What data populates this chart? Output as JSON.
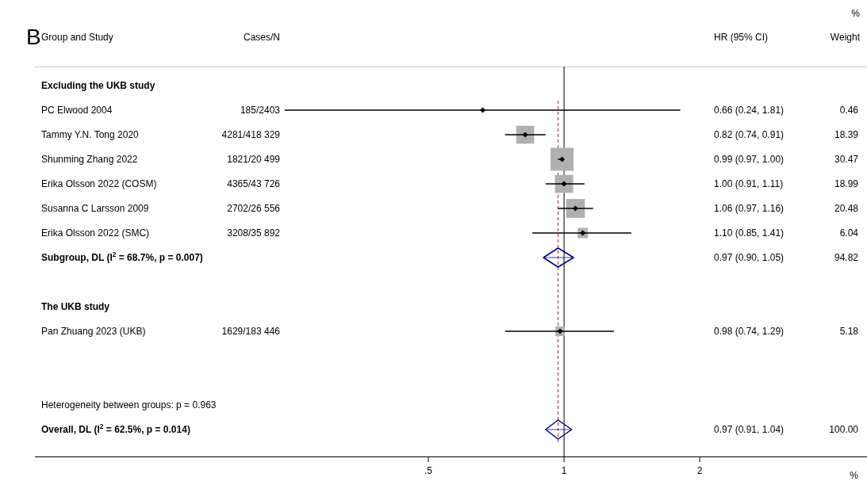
{
  "chart_data": {
    "type": "scatter",
    "title": "B",
    "ylabel": "Group and Study",
    "orientation": "horizontal",
    "log": "x",
    "categories": [
      "Excluding the UKB study",
      "PC Elwood 2004",
      "Tammy Y.N. Tong 2020",
      "Shunming Zhang 2022",
      "Erika Olsson 2022 (COSM)",
      "Susanna C Larsson 2009",
      "Erika Olsson 2022 (SMC)",
      "Subgroup, DL (I$^{2}$ = 68.7%, p = 0.007)",
      null,
      "The UKB study",
      "Pan Zhuang 2023 (UKB)",
      null,
      null,
      "Heterogeneity between groups: p = 0.963",
      "Overall, DL (I$^{2}$ = 62.5%, p = 0.014)"
    ],
    "xlim": [
      0.067,
      4.7
    ],
    "xticks": [
      {
        "value": 0.5,
        "label": ".5"
      },
      1,
      2
    ],
    "series": [
      {
        "marker": "square",
        "color": "#b0b0b0",
        "values": [
          null,
          0.66,
          0.82,
          0.99,
          1.0,
          1.06,
          1.1,
          null,
          null,
          null,
          0.98,
          null,
          null,
          null,
          null
        ],
        "errors": [
          null,
          [
            0.24,
            1.81
          ],
          [
            0.74,
            0.91
          ],
          [
            0.97,
            1.0
          ],
          [
            0.91,
            1.11
          ],
          [
            0.97,
            1.16
          ],
          [
            0.85,
            1.41
          ],
          null,
          null,
          null,
          [
            0.74,
            1.29
          ],
          null,
          null,
          null,
          null
        ],
        "sizes": [
          null,
          0.015,
          0.604,
          1,
          0.623,
          0.672,
          0.198,
          null,
          null,
          null,
          0.17,
          null,
          null,
          null,
          null
        ]
      },
      {
        "marker": "diamond",
        "color": "#000080",
        "values": [
          null,
          null,
          null,
          null,
          null,
          null,
          null,
          0.97,
          null,
          null,
          null,
          null,
          null,
          null,
          0.97
        ],
        "errors": [
          null,
          null,
          null,
          null,
          null,
          null,
          null,
          [
            0.9,
            1.05
          ],
          null,
          null,
          null,
          null,
          null,
          null,
          [
            0.91,
            1.04
          ]
        ]
      }
    ],
    "ref_lines": [
      {
        "axis": "x",
        "value": 1,
        "color": "#000000",
        "line_style": "solid"
      },
      {
        "axis": "x",
        "value": 0.97,
        "color": "#a0282d",
        "line_style": "dashed"
      }
    ],
    "annotations": [
      "Cases/N",
      "HR (95% CI)",
      "%\nWeight",
      "%",
      "185/2403",
      "4281/418 329",
      "1821/20 499",
      "4365/43 726",
      "2702/26 556",
      "3208/35 892",
      "1629/183 446",
      "0.66 (0.24, 1.81)",
      "0.82 (0.74, 0.91)",
      "0.99 (0.97, 1.00)",
      "1.00 (0.91, 1.11)",
      "1.06 (0.97, 1.16)",
      "1.10 (0.85, 1.41)",
      "0.97 (0.90, 1.05)",
      "0.98 (0.74, 1.29)",
      "0.97 (0.91, 1.04)",
      "0.46",
      "18.39",
      "30.47",
      "18.99",
      "20.48",
      "6.04",
      "94.82",
      "5.18",
      "100.00"
    ]
  }
}
